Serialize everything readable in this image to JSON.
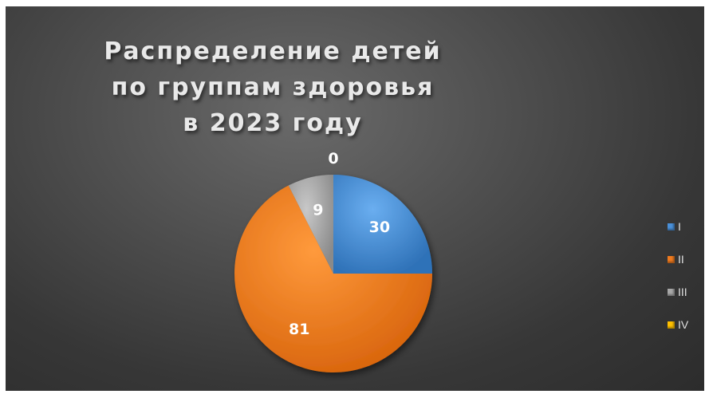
{
  "chart_data": {
    "type": "pie",
    "title_lines": [
      "Распределение детей",
      "по группам здоровья",
      "в 2023 году"
    ],
    "categories": [
      "I",
      "II",
      "III",
      "IV"
    ],
    "values": [
      30,
      81,
      9,
      0
    ],
    "colors": [
      "#4a90d9",
      "#ee7a1f",
      "#a8a8a8",
      "#ffc000"
    ],
    "data_labels": [
      "30",
      "81",
      "9",
      "0"
    ],
    "legend_position": "right"
  }
}
